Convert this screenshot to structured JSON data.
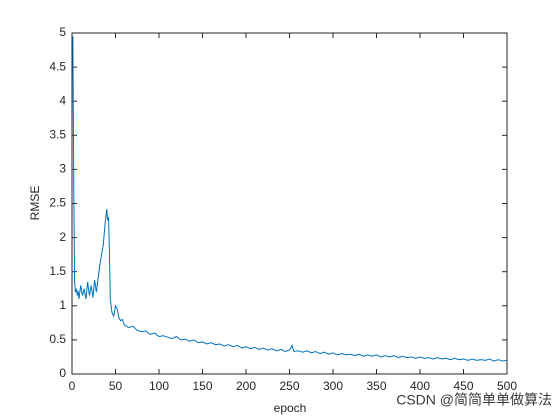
{
  "chart_data": {
    "type": "line",
    "x_label": "epoch",
    "y_label": "RMSE",
    "watermark": "CSDN @简简单单做算法",
    "xlim": [
      0,
      500
    ],
    "xticks": [
      0,
      50,
      100,
      150,
      200,
      250,
      300,
      350,
      400,
      450,
      500
    ],
    "ylim": [
      0,
      5
    ],
    "yticks": [
      0,
      0.5,
      1,
      1.5,
      2,
      2.5,
      3,
      3.5,
      4,
      4.5,
      5
    ],
    "series": [
      {
        "color": "#0072bd",
        "x": [
          1,
          2,
          3,
          4,
          5,
          6,
          7,
          8,
          10,
          12,
          14,
          16,
          18,
          20,
          22,
          24,
          26,
          28,
          30,
          32,
          34,
          36,
          38,
          40,
          41,
          42,
          43,
          44,
          46,
          48,
          50,
          52,
          54,
          56,
          58,
          60,
          65,
          70,
          75,
          80,
          85,
          90,
          95,
          100,
          105,
          110,
          115,
          120,
          125,
          130,
          135,
          140,
          145,
          150,
          155,
          160,
          165,
          170,
          175,
          180,
          185,
          190,
          195,
          200,
          205,
          210,
          215,
          220,
          225,
          230,
          235,
          240,
          245,
          250,
          253,
          255,
          260,
          265,
          270,
          275,
          280,
          285,
          290,
          295,
          300,
          305,
          310,
          315,
          320,
          325,
          330,
          335,
          340,
          345,
          350,
          355,
          360,
          365,
          370,
          375,
          380,
          385,
          390,
          395,
          400,
          405,
          410,
          415,
          420,
          425,
          430,
          435,
          440,
          445,
          450,
          455,
          460,
          465,
          470,
          475,
          480,
          485,
          490,
          495,
          500
        ],
        "values": [
          4.95,
          2.8,
          1.35,
          1.2,
          1.25,
          1.15,
          1.22,
          1.1,
          1.3,
          1.15,
          1.25,
          1.1,
          1.35,
          1.15,
          1.3,
          1.12,
          1.38,
          1.2,
          1.4,
          1.6,
          1.75,
          1.9,
          2.2,
          2.42,
          2.25,
          2.3,
          1.8,
          1.1,
          0.9,
          0.85,
          1.0,
          0.95,
          0.82,
          0.78,
          0.8,
          0.72,
          0.68,
          0.7,
          0.64,
          0.62,
          0.63,
          0.58,
          0.6,
          0.55,
          0.56,
          0.54,
          0.52,
          0.55,
          0.5,
          0.51,
          0.48,
          0.5,
          0.46,
          0.47,
          0.44,
          0.46,
          0.43,
          0.44,
          0.41,
          0.43,
          0.4,
          0.42,
          0.38,
          0.4,
          0.37,
          0.39,
          0.36,
          0.38,
          0.35,
          0.37,
          0.34,
          0.36,
          0.33,
          0.35,
          0.42,
          0.33,
          0.34,
          0.32,
          0.34,
          0.31,
          0.33,
          0.3,
          0.32,
          0.29,
          0.31,
          0.28,
          0.3,
          0.28,
          0.29,
          0.27,
          0.29,
          0.26,
          0.28,
          0.26,
          0.28,
          0.25,
          0.27,
          0.25,
          0.27,
          0.24,
          0.26,
          0.24,
          0.25,
          0.23,
          0.25,
          0.23,
          0.24,
          0.22,
          0.24,
          0.22,
          0.23,
          0.21,
          0.23,
          0.21,
          0.22,
          0.2,
          0.22,
          0.2,
          0.21,
          0.2,
          0.22,
          0.19,
          0.21,
          0.19,
          0.2
        ]
      }
    ]
  }
}
